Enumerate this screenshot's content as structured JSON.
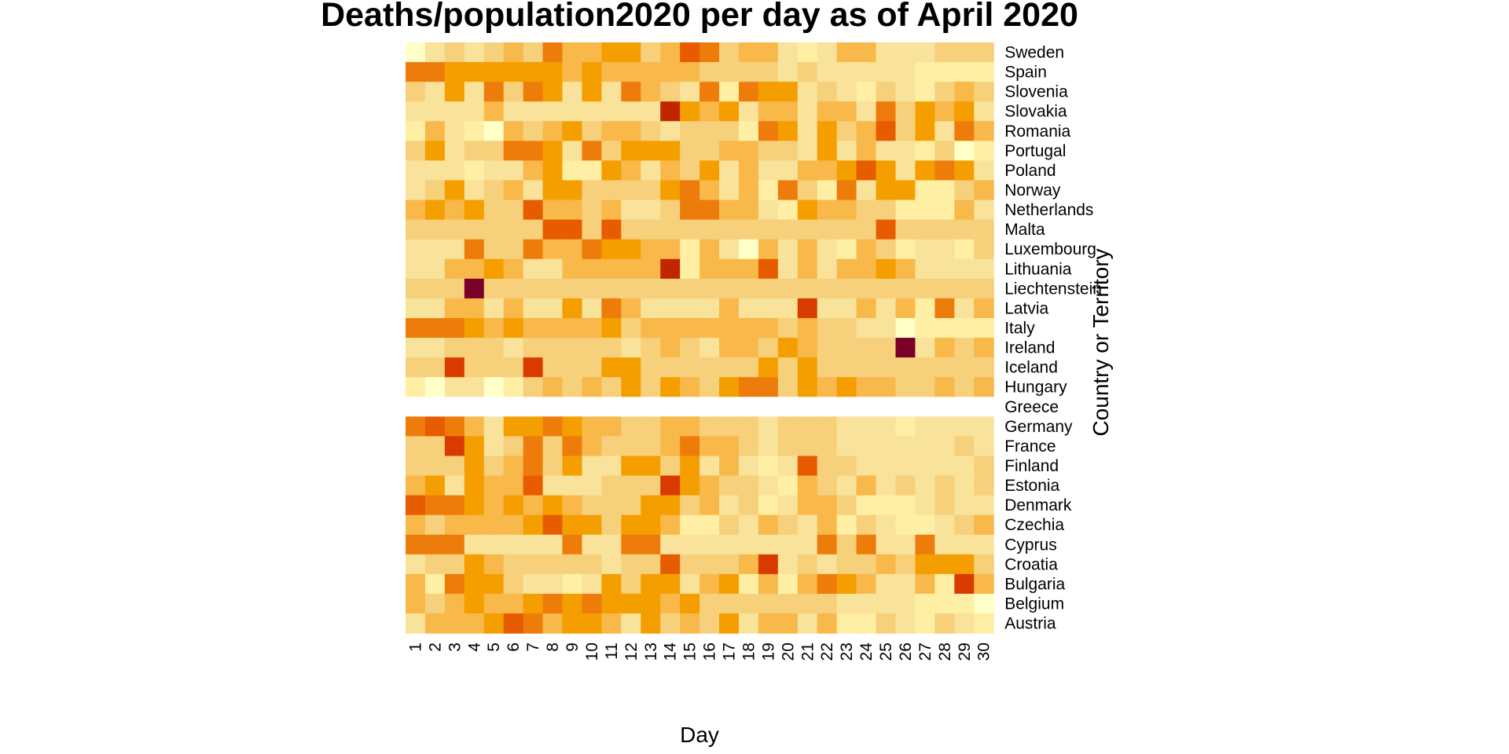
{
  "chart_data": {
    "type": "heatmap",
    "title": "Deaths/population2020 per day as of April 2020",
    "xlabel": "Day",
    "ylabel": "Country or Territory",
    "x": [
      "1",
      "2",
      "3",
      "4",
      "5",
      "6",
      "7",
      "8",
      "9",
      "10",
      "11",
      "12",
      "13",
      "14",
      "15",
      "16",
      "17",
      "18",
      "19",
      "20",
      "21",
      "22",
      "23",
      "24",
      "25",
      "26",
      "27",
      "28",
      "29",
      "30"
    ],
    "y_top_to_bottom": [
      "Sweden",
      "Spain",
      "Slovenia",
      "Slovakia",
      "Romania",
      "Portugal",
      "Poland",
      "Norway",
      "Netherlands",
      "Malta",
      "Luxembourg",
      "Lithuania",
      "Liechtenstein",
      "Latvia",
      "Italy",
      "Ireland",
      "Iceland",
      "Hungary",
      "Greece",
      "Germany",
      "France",
      "Finland",
      "Estonia",
      "Denmark",
      "Czechia",
      "Cyprus",
      "Croatia",
      "Bulgaria",
      "Belgium",
      "Austria"
    ],
    "color_scale": [
      "#FFFFC8",
      "#FEEFA4",
      "#F9E29A",
      "#F7D07C",
      "#F8B84A",
      "#F59E00",
      "#EE7C0A",
      "#E85C00",
      "#D83A00",
      "#C22600",
      "#7B0029"
    ],
    "missing_color": "#FFFFFF",
    "legend": "none",
    "values": [
      [
        0,
        2,
        3,
        2,
        3,
        4,
        3,
        6,
        4,
        4,
        5,
        5,
        3,
        4,
        7,
        6,
        3,
        4,
        4,
        2,
        1,
        2,
        4,
        4,
        2,
        2,
        2,
        3,
        3,
        3
      ],
      [
        6,
        6,
        5,
        5,
        5,
        5,
        5,
        5,
        4,
        5,
        4,
        4,
        4,
        4,
        4,
        3,
        3,
        3,
        3,
        2,
        3,
        2,
        2,
        2,
        2,
        2,
        1,
        1,
        1,
        1
      ],
      [
        3,
        2,
        5,
        2,
        6,
        3,
        6,
        5,
        2,
        5,
        2,
        6,
        4,
        3,
        2,
        6,
        1,
        6,
        5,
        5,
        2,
        3,
        2,
        1,
        3,
        2,
        1,
        3,
        4,
        3
      ],
      [
        2,
        2,
        2,
        2,
        4,
        2,
        2,
        2,
        2,
        2,
        2,
        2,
        2,
        9,
        5,
        4,
        5,
        2,
        4,
        4,
        2,
        4,
        4,
        2,
        6,
        3,
        5,
        4,
        5,
        2
      ],
      [
        1,
        4,
        2,
        1,
        0,
        4,
        3,
        4,
        5,
        3,
        4,
        4,
        3,
        2,
        3,
        3,
        3,
        1,
        6,
        5,
        2,
        5,
        3,
        4,
        7,
        3,
        5,
        2,
        6,
        4
      ],
      [
        3,
        5,
        2,
        3,
        3,
        6,
        6,
        5,
        2,
        6,
        3,
        5,
        5,
        5,
        3,
        3,
        4,
        4,
        3,
        3,
        2,
        5,
        2,
        4,
        2,
        2,
        1,
        3,
        0,
        1
      ],
      [
        2,
        2,
        2,
        1,
        2,
        2,
        4,
        5,
        1,
        1,
        5,
        4,
        2,
        4,
        3,
        5,
        2,
        4,
        2,
        2,
        4,
        4,
        5,
        7,
        5,
        2,
        5,
        6,
        5,
        2
      ],
      [
        2,
        3,
        5,
        2,
        3,
        4,
        2,
        5,
        5,
        3,
        3,
        3,
        3,
        5,
        6,
        4,
        2,
        4,
        1,
        6,
        3,
        1,
        6,
        2,
        5,
        5,
        1,
        1,
        3,
        4
      ],
      [
        4,
        5,
        4,
        5,
        3,
        3,
        7,
        4,
        4,
        3,
        4,
        2,
        2,
        3,
        6,
        6,
        4,
        4,
        2,
        1,
        5,
        4,
        4,
        3,
        3,
        1,
        1,
        1,
        4,
        2
      ],
      [
        3,
        3,
        3,
        3,
        3,
        3,
        3,
        7,
        7,
        3,
        7,
        3,
        3,
        3,
        3,
        3,
        3,
        3,
        3,
        3,
        3,
        3,
        3,
        3,
        7,
        3,
        3,
        3,
        3,
        3
      ],
      [
        2,
        2,
        2,
        6,
        3,
        3,
        6,
        4,
        4,
        6,
        5,
        5,
        4,
        4,
        1,
        4,
        2,
        0,
        4,
        2,
        4,
        2,
        1,
        4,
        3,
        1,
        2,
        2,
        1,
        3
      ],
      [
        2,
        2,
        4,
        4,
        5,
        4,
        2,
        2,
        4,
        4,
        4,
        4,
        4,
        9,
        1,
        4,
        4,
        4,
        7,
        2,
        4,
        2,
        4,
        4,
        5,
        4,
        2,
        2,
        2,
        2
      ],
      [
        3,
        3,
        3,
        10,
        3,
        3,
        3,
        3,
        3,
        3,
        3,
        3,
        3,
        3,
        3,
        3,
        3,
        3,
        3,
        3,
        3,
        3,
        3,
        3,
        3,
        3,
        3,
        3,
        3,
        3
      ],
      [
        2,
        2,
        4,
        4,
        2,
        4,
        2,
        2,
        5,
        2,
        6,
        4,
        2,
        2,
        2,
        2,
        4,
        2,
        2,
        2,
        8,
        2,
        2,
        4,
        2,
        4,
        1,
        6,
        2,
        4
      ],
      [
        6,
        6,
        6,
        5,
        4,
        5,
        4,
        4,
        4,
        4,
        5,
        3,
        4,
        4,
        4,
        4,
        4,
        4,
        4,
        3,
        4,
        3,
        3,
        2,
        2,
        0,
        1,
        1,
        1,
        1
      ],
      [
        2,
        2,
        3,
        3,
        3,
        2,
        3,
        3,
        3,
        3,
        3,
        2,
        3,
        4,
        3,
        2,
        4,
        4,
        3,
        5,
        4,
        3,
        3,
        3,
        3,
        10,
        2,
        4,
        3,
        4
      ],
      [
        3,
        3,
        8,
        3,
        3,
        3,
        8,
        3,
        3,
        3,
        5,
        5,
        3,
        3,
        3,
        3,
        3,
        3,
        5,
        3,
        5,
        3,
        3,
        3,
        3,
        3,
        3,
        3,
        3,
        3
      ],
      [
        1,
        0,
        2,
        2,
        0,
        1,
        3,
        4,
        3,
        4,
        3,
        5,
        3,
        5,
        4,
        3,
        5,
        6,
        6,
        3,
        5,
        4,
        5,
        4,
        4,
        3,
        3,
        4,
        3,
        4
      ],
      [
        -1,
        -1,
        -1,
        -1,
        -1,
        -1,
        -1,
        -1,
        -1,
        -1,
        -1,
        -1,
        -1,
        -1,
        -1,
        -1,
        -1,
        -1,
        -1,
        -1,
        -1,
        -1,
        -1,
        -1,
        -1,
        -1,
        -1,
        -1,
        -1,
        -1
      ],
      [
        6,
        7,
        6,
        4,
        2,
        5,
        5,
        6,
        5,
        4,
        4,
        3,
        3,
        4,
        4,
        3,
        3,
        3,
        2,
        3,
        3,
        3,
        2,
        2,
        2,
        1,
        2,
        2,
        2,
        2
      ],
      [
        3,
        3,
        8,
        5,
        2,
        3,
        6,
        3,
        6,
        4,
        3,
        3,
        3,
        4,
        6,
        4,
        4,
        3,
        2,
        3,
        3,
        3,
        2,
        2,
        2,
        2,
        2,
        2,
        3,
        2
      ],
      [
        3,
        3,
        3,
        5,
        3,
        4,
        6,
        3,
        5,
        2,
        2,
        5,
        5,
        3,
        5,
        2,
        4,
        2,
        1,
        2,
        7,
        3,
        3,
        2,
        2,
        2,
        2,
        2,
        2,
        3
      ],
      [
        4,
        5,
        2,
        5,
        4,
        4,
        7,
        2,
        2,
        2,
        3,
        3,
        3,
        8,
        5,
        4,
        3,
        3,
        2,
        1,
        4,
        3,
        2,
        4,
        2,
        3,
        2,
        3,
        2,
        3
      ],
      [
        7,
        6,
        6,
        5,
        4,
        5,
        4,
        5,
        4,
        3,
        3,
        3,
        5,
        5,
        3,
        4,
        2,
        3,
        1,
        2,
        4,
        4,
        3,
        1,
        1,
        1,
        2,
        3,
        2,
        2
      ],
      [
        4,
        3,
        4,
        4,
        4,
        4,
        5,
        7,
        5,
        5,
        3,
        5,
        5,
        4,
        1,
        1,
        3,
        2,
        4,
        3,
        2,
        4,
        1,
        3,
        2,
        1,
        1,
        2,
        3,
        4
      ],
      [
        6,
        6,
        6,
        2,
        2,
        2,
        2,
        2,
        6,
        2,
        2,
        6,
        6,
        2,
        2,
        2,
        2,
        2,
        2,
        2,
        2,
        6,
        3,
        6,
        2,
        2,
        6,
        2,
        2,
        2
      ],
      [
        2,
        3,
        3,
        5,
        4,
        3,
        3,
        3,
        3,
        3,
        2,
        3,
        3,
        7,
        3,
        3,
        3,
        4,
        8,
        2,
        3,
        2,
        3,
        3,
        4,
        3,
        5,
        5,
        5,
        3
      ],
      [
        4,
        1,
        6,
        5,
        5,
        3,
        2,
        2,
        1,
        2,
        5,
        3,
        5,
        5,
        2,
        4,
        5,
        1,
        4,
        1,
        4,
        6,
        5,
        4,
        2,
        2,
        4,
        1,
        8,
        4
      ],
      [
        4,
        3,
        4,
        5,
        4,
        4,
        5,
        6,
        5,
        6,
        5,
        5,
        5,
        4,
        5,
        3,
        3,
        3,
        3,
        3,
        3,
        3,
        2,
        2,
        2,
        2,
        1,
        1,
        1,
        0
      ],
      [
        2,
        4,
        4,
        4,
        5,
        7,
        6,
        4,
        5,
        5,
        4,
        2,
        5,
        3,
        4,
        3,
        5,
        2,
        4,
        4,
        2,
        4,
        1,
        1,
        3,
        2,
        1,
        3,
        2,
        1
      ]
    ]
  }
}
